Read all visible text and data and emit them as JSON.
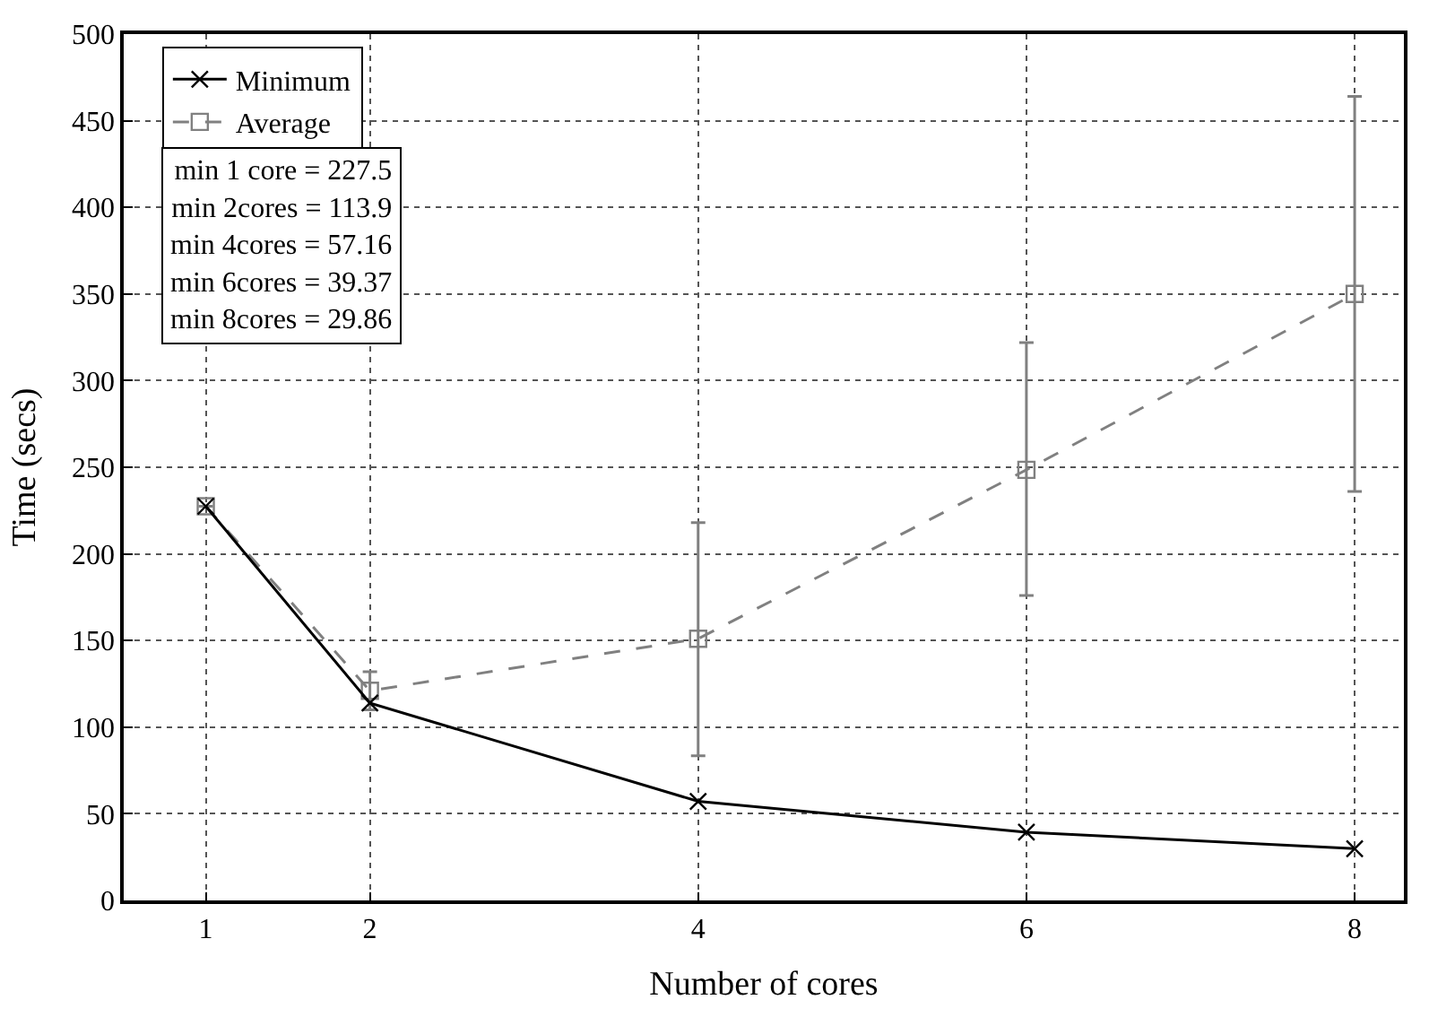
{
  "chart_data": {
    "type": "line",
    "xlabel": "Number of cores",
    "ylabel": "Time (secs)",
    "x": [
      1,
      2,
      4,
      6,
      8
    ],
    "series": [
      {
        "name": "Minimum",
        "color": "#000000",
        "marker": "cross",
        "line_style": "solid",
        "values": [
          227.5,
          113.9,
          57.16,
          39.37,
          29.86
        ]
      },
      {
        "name": "Average",
        "color": "#808080",
        "marker": "square",
        "line_style": "dashed",
        "values": [
          227.5,
          121,
          151,
          248.5,
          350
        ],
        "errors": [
          null,
          [
            110,
            132
          ],
          [
            83.5,
            218
          ],
          [
            176,
            322
          ],
          [
            236,
            464
          ]
        ]
      }
    ],
    "annotations": [
      "min 1 core = 227.5",
      "min 2cores = 113.9",
      "min 4cores = 57.16",
      "min 6cores = 39.37",
      "min 8cores = 29.86"
    ],
    "xlim": [
      0.5,
      8.3
    ],
    "xticks": [
      1,
      2,
      4,
      6,
      8
    ],
    "ylim": [
      0,
      500
    ],
    "yticks": [
      0,
      50,
      100,
      150,
      200,
      250,
      300,
      350,
      400,
      450,
      500
    ],
    "grid": true,
    "legend": "top left"
  }
}
